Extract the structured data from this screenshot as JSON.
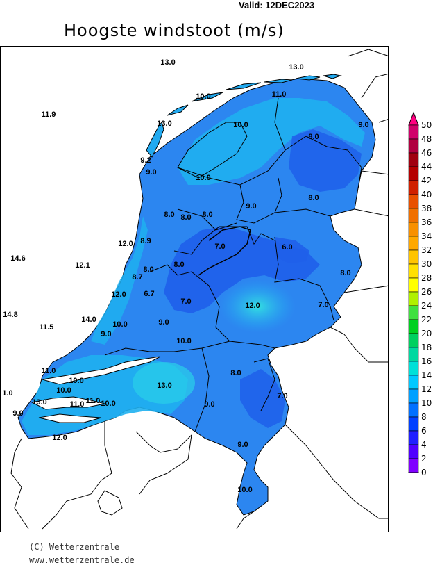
{
  "header": {
    "valid": "Valid:  12DEC2023",
    "title": "Hoogste windstoot (m/s)"
  },
  "map": {
    "values": [
      {
        "text": "13.0"
      },
      {
        "text": "13.0"
      },
      {
        "text": "10.0"
      },
      {
        "text": "11.0"
      },
      {
        "text": "11.9"
      },
      {
        "text": "13.0"
      },
      {
        "text": "10.0"
      },
      {
        "text": "9.0"
      },
      {
        "text": "8.0"
      },
      {
        "text": "9.2"
      },
      {
        "text": "9.0"
      },
      {
        "text": "10.0"
      },
      {
        "text": "9.0"
      },
      {
        "text": "8.0"
      },
      {
        "text": "8.0"
      },
      {
        "text": "8.0"
      },
      {
        "text": "8.0"
      },
      {
        "text": "12.0"
      },
      {
        "text": "8.9"
      },
      {
        "text": "7.0"
      },
      {
        "text": "6.0"
      },
      {
        "text": "14.6"
      },
      {
        "text": "12.1"
      },
      {
        "text": "8.0"
      },
      {
        "text": "8.0"
      },
      {
        "text": "8.7"
      },
      {
        "text": "8.0"
      },
      {
        "text": "12.0"
      },
      {
        "text": "6.7"
      },
      {
        "text": "7.0"
      },
      {
        "text": "12.0"
      },
      {
        "text": "7.0"
      },
      {
        "text": "14.8"
      },
      {
        "text": "11.5"
      },
      {
        "text": "14.0"
      },
      {
        "text": "10.0"
      },
      {
        "text": "9.0"
      },
      {
        "text": "9.0"
      },
      {
        "text": "10.0"
      },
      {
        "text": "11.0"
      },
      {
        "text": "10.0"
      },
      {
        "text": "10.0"
      },
      {
        "text": "8.0"
      },
      {
        "text": "13.0"
      },
      {
        "text": "1.0"
      },
      {
        "text": "13.0"
      },
      {
        "text": "11.0"
      },
      {
        "text": "11.0"
      },
      {
        "text": "10.0"
      },
      {
        "text": "7.0"
      },
      {
        "text": "9.0"
      },
      {
        "text": "9.0"
      },
      {
        "text": "12.0"
      },
      {
        "text": "9.0"
      },
      {
        "text": "10.0"
      }
    ]
  },
  "legend": {
    "ticks": [
      "50",
      "48",
      "46",
      "44",
      "42",
      "40",
      "38",
      "36",
      "34",
      "32",
      "30",
      "28",
      "26",
      "24",
      "22",
      "20",
      "18",
      "16",
      "14",
      "12",
      "10",
      "8",
      "6",
      "4",
      "2",
      "0"
    ],
    "colors": [
      "#ff0080",
      "#d0006a",
      "#b00040",
      "#a00010",
      "#b40000",
      "#d02000",
      "#e85000",
      "#f07000",
      "#f89000",
      "#ffa800",
      "#ffc400",
      "#ffe000",
      "#ffff00",
      "#b0f000",
      "#40e040",
      "#00d020",
      "#00d060",
      "#00d8a0",
      "#00e0d8",
      "#00c8ff",
      "#00a0ff",
      "#0070ff",
      "#0040ff",
      "#2020ff",
      "#5000ff",
      "#8000ff"
    ]
  },
  "footer": {
    "copyright": "(C) Wetterzentrale",
    "website": "www.wetterzentrale.de"
  }
}
